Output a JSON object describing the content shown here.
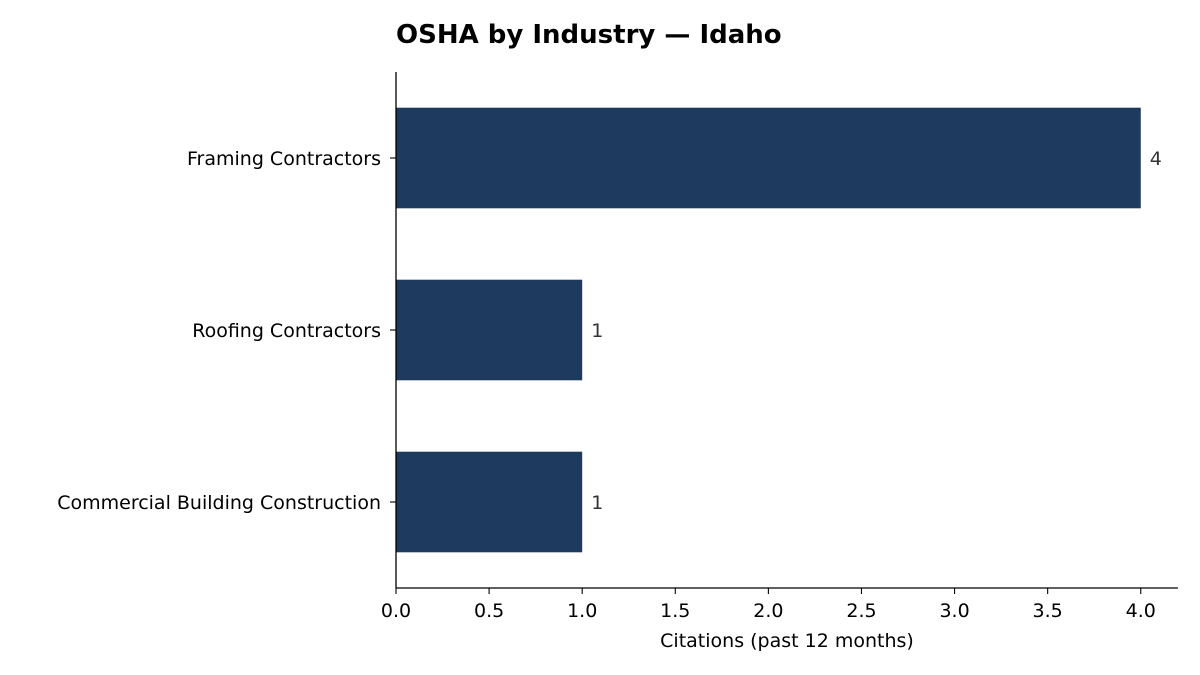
{
  "chart_data": {
    "type": "bar",
    "orientation": "horizontal",
    "title": "OSHA by Industry — Idaho",
    "xlabel": "Citations (past 12 months)",
    "ylabel": "",
    "categories": [
      "Framing Contractors",
      "Roofing Contractors",
      "Commercial Building Construction"
    ],
    "values": [
      4,
      1,
      1
    ],
    "data_labels": [
      "4",
      "1",
      "1"
    ],
    "xlim": [
      0,
      4.2
    ],
    "xticks": [
      0.0,
      0.5,
      1.0,
      1.5,
      2.0,
      2.5,
      3.0,
      3.5,
      4.0
    ],
    "xtick_labels": [
      "0.0",
      "0.5",
      "1.0",
      "1.5",
      "2.0",
      "2.5",
      "3.0",
      "3.5",
      "4.0"
    ],
    "bar_color": "#1f3a5f",
    "grid": false,
    "legend": "none"
  }
}
